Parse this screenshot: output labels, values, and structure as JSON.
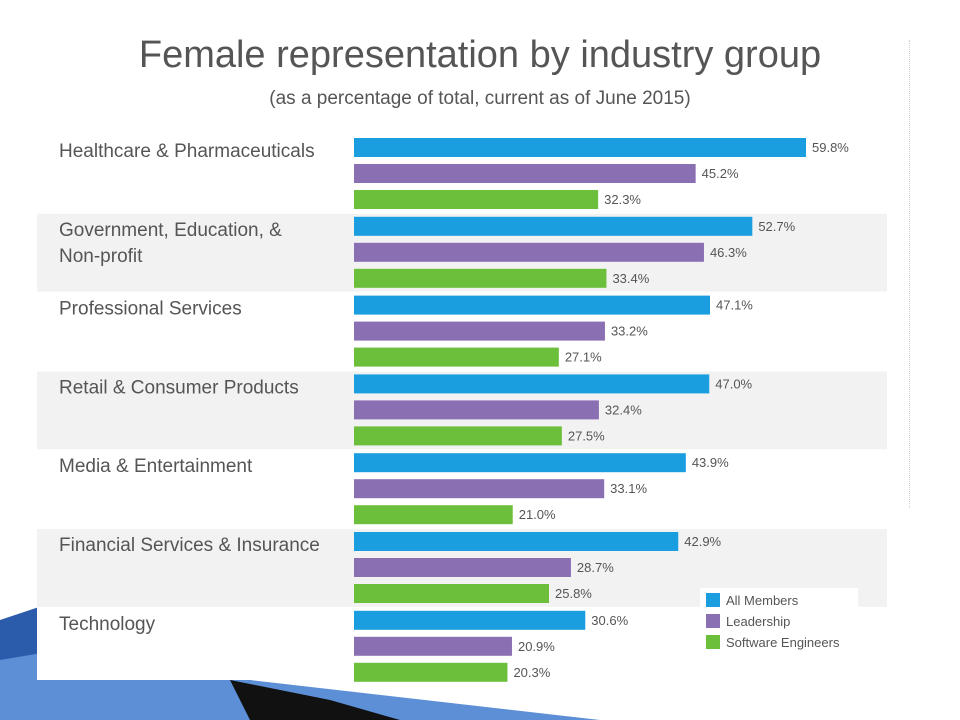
{
  "chart_data": {
    "type": "bar",
    "orientation": "horizontal",
    "title": "Female representation by industry group",
    "subtitle": "(as a percentage of total, current as of June 2015)",
    "categories": [
      [
        "Healthcare & Pharmaceuticals"
      ],
      [
        "Government, Education, &",
        "Non-profit"
      ],
      [
        "Professional Services"
      ],
      [
        "Retail & Consumer Products"
      ],
      [
        "Media & Entertainment"
      ],
      [
        "Financial Services & Insurance"
      ],
      [
        "Technology"
      ]
    ],
    "series": [
      {
        "name": "All Members",
        "color": "#1a9ee0",
        "values": [
          59.8,
          52.7,
          47.1,
          47.0,
          43.9,
          42.9,
          30.6
        ],
        "labels": [
          "59.8%",
          "52.7%",
          "47.1%",
          "47.0%",
          "43.9%",
          "42.9%",
          "30.6%"
        ]
      },
      {
        "name": "Leadership",
        "color": "#8b6fb3",
        "values": [
          45.2,
          46.3,
          33.2,
          32.4,
          33.1,
          28.7,
          20.9
        ],
        "labels": [
          "45.2%",
          "46.3%",
          "33.2%",
          "32.4%",
          "33.1%",
          "28.7%",
          "20.9%"
        ]
      },
      {
        "name": "Software Engineers",
        "color": "#6cbf3a",
        "values": [
          32.3,
          33.4,
          27.1,
          27.5,
          21.0,
          25.8,
          20.3
        ],
        "labels": [
          "32.3%",
          "33.4%",
          "27.1%",
          "27.5%",
          "21.0%",
          "25.8%",
          "20.3%"
        ]
      }
    ],
    "xlim": [
      0,
      60
    ],
    "legend_position": "bottom-right",
    "grid": false
  },
  "colors": {
    "row_band": "#f2f2f2",
    "text": "#555555",
    "slide_blue": "#1f4f9a"
  }
}
